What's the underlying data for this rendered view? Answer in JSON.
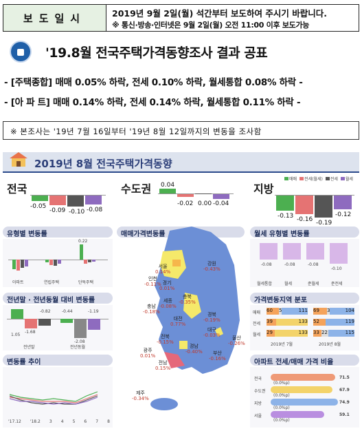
{
  "header": {
    "label": "보도일시",
    "line1": "2019년 9월 2일(월) 석간부터 보도하여 주시기 바랍니다.",
    "line2_bold": "※ 통신·방송·인터넷은 9월 2일(월) 오전 11:00 이후 보도가능"
  },
  "title": "'19.8월 전국주택가격동향조사 결과 공표",
  "headlines": [
    "- [주택종합] 매매 0.05% 하락, 전세 0.10% 하락, 월세통합 0.08% 하락 -",
    "- [아 파 트] 매매 0.14% 하락, 전세 0.14% 하락, 월세통합 0.11% 하락 -"
  ],
  "note": "※ 본조사는 '19년 7월 16일부터 '19년 8월 12일까지의 변동을 조사함",
  "infographic": {
    "title": "2019년 8월 전국주택가격동향",
    "legend": [
      "매매",
      "전세(월세)",
      "전세",
      "월세"
    ],
    "regions": [
      {
        "name": "전국",
        "values": [
          "-0.05",
          "-0.09",
          "-0.10",
          "-0.08"
        ]
      },
      {
        "name": "수도권",
        "values": [
          "0.04",
          "-0.02",
          "0.00",
          "-0.04"
        ]
      },
      {
        "name": "지방",
        "values": [
          "-0.13",
          "-0.16",
          "-0.19",
          "-0.12"
        ]
      }
    ],
    "sections": {
      "type_change": "유형별 변동률",
      "sale_change": "매매가격변동률",
      "monthly_type": "월세 유형별 변동률",
      "prev_compare": "전년말 · 전년동월 대비 변동률",
      "dist": "가격변동지역 분포",
      "trend": "변동률 추이",
      "ratio": "아파트 전세/매매 가격 비율"
    },
    "type_groups": [
      "아파트",
      "연립주택",
      "단독주택"
    ],
    "type_values": [
      "0.22"
    ],
    "monthly_type": {
      "categories": [
        "월세통합",
        "월세",
        "준월세",
        "준전세"
      ],
      "values": [
        "-0.08",
        "-0.08",
        "-0.08",
        "-0.10"
      ]
    },
    "prev_compare": {
      "categories": [
        "전년말",
        "전년동월"
      ],
      "values": [
        "1.05",
        "-0.82",
        "-1.68",
        "-0.44",
        "-1.19",
        "-2.08"
      ]
    },
    "map_labels": [
      {
        "name": "서울",
        "val": "0.14%"
      },
      {
        "name": "인천",
        "val": "-0.11%"
      },
      {
        "name": "경기",
        "val": "0.01%"
      },
      {
        "name": "강원",
        "val": "-0.43%"
      },
      {
        "name": "세종",
        "val": "-0.08%"
      },
      {
        "name": "충북",
        "val": "-0.35%"
      },
      {
        "name": "충남",
        "val": "-0.18%"
      },
      {
        "name": "대전",
        "val": "0.77%"
      },
      {
        "name": "경북",
        "val": "-0.19%"
      },
      {
        "name": "전북",
        "val": "-0.15%"
      },
      {
        "name": "대구",
        "val": "-0.03%"
      },
      {
        "name": "울산",
        "val": "-0.26%"
      },
      {
        "name": "경남",
        "val": "-0.40%"
      },
      {
        "name": "광주",
        "val": "0.01%"
      },
      {
        "name": "부산",
        "val": "-0.16%"
      },
      {
        "name": "전남",
        "val": "0.15%"
      },
      {
        "name": "제주",
        "val": "-0.34%"
      }
    ],
    "dist": {
      "rows": [
        "매매",
        "전세",
        "월세"
      ],
      "cells": [
        [
          "60",
          "5",
          "111",
          "69",
          "3",
          "104"
        ],
        [
          "39",
          "133",
          "52",
          "119"
        ],
        [
          "29",
          "133",
          "33",
          "22",
          "115"
        ]
      ],
      "months": [
        "2019년 7월",
        "2019년 8월"
      ]
    },
    "trend": {
      "x": [
        "'17.12",
        "'18.2",
        "3",
        "4",
        "5",
        "6",
        "7",
        "8"
      ]
    },
    "ratio": {
      "rows": [
        {
          "name": "전국",
          "tag": "(0.0%p)",
          "value": "71.5"
        },
        {
          "name": "수도권",
          "tag": "(0.0%p)",
          "value": "67.9"
        },
        {
          "name": "지방",
          "tag": "(0.0%p)",
          "value": "74.9"
        },
        {
          "name": "서울",
          "tag": "(0.0%p)",
          "value": "59.1"
        }
      ]
    }
  }
}
